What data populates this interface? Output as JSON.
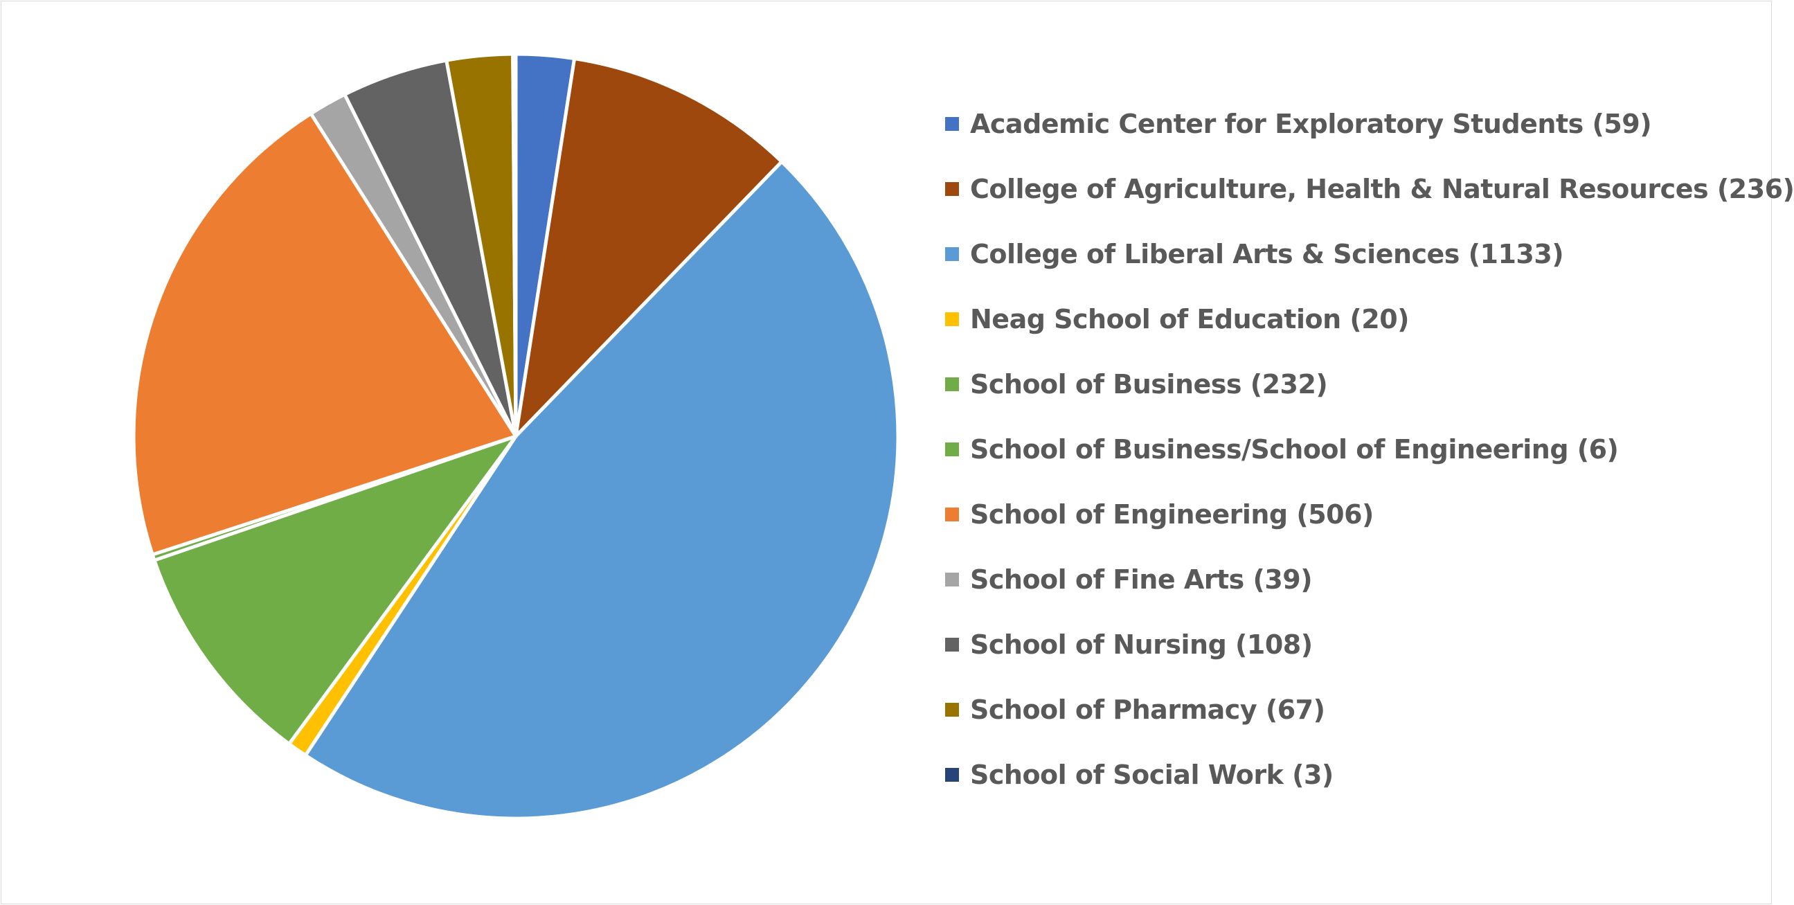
{
  "chart_data": {
    "type": "pie",
    "title": "",
    "legend_position": "right",
    "categories": [
      "Academic Center for Exploratory Students",
      "College of Agriculture, Health & Natural Resources",
      "College of Liberal Arts & Sciences",
      "Neag School of Education",
      "School of Business",
      "School of Business/School of Engineering",
      "School of Engineering",
      "School of Fine Arts",
      "School of Nursing",
      "School of Pharmacy",
      "School of Social Work"
    ],
    "values": [
      59,
      236,
      1133,
      20,
      232,
      6,
      506,
      39,
      108,
      67,
      3
    ],
    "legend_labels": [
      "Academic Center for Exploratory Students (59)",
      "College of Agriculture, Health & Natural Resources (236)",
      "College of Liberal Arts & Sciences (1133)",
      "Neag School of Education (20)",
      "School of Business (232)",
      "School of Business/School of Engineering (6)",
      "School of Engineering (506)",
      "School of Fine Arts (39)",
      "School of Nursing (108)",
      "School of Pharmacy (67)",
      "School of Social Work (3)"
    ],
    "colors": [
      "#4472C4",
      "#9E480E",
      "#5B9BD5",
      "#FFC000",
      "#70AD47",
      "#70AD47",
      "#ED7D31",
      "#A5A5A5",
      "#636363",
      "#997300",
      "#264478"
    ],
    "slice_border_color": "#ffffff"
  }
}
